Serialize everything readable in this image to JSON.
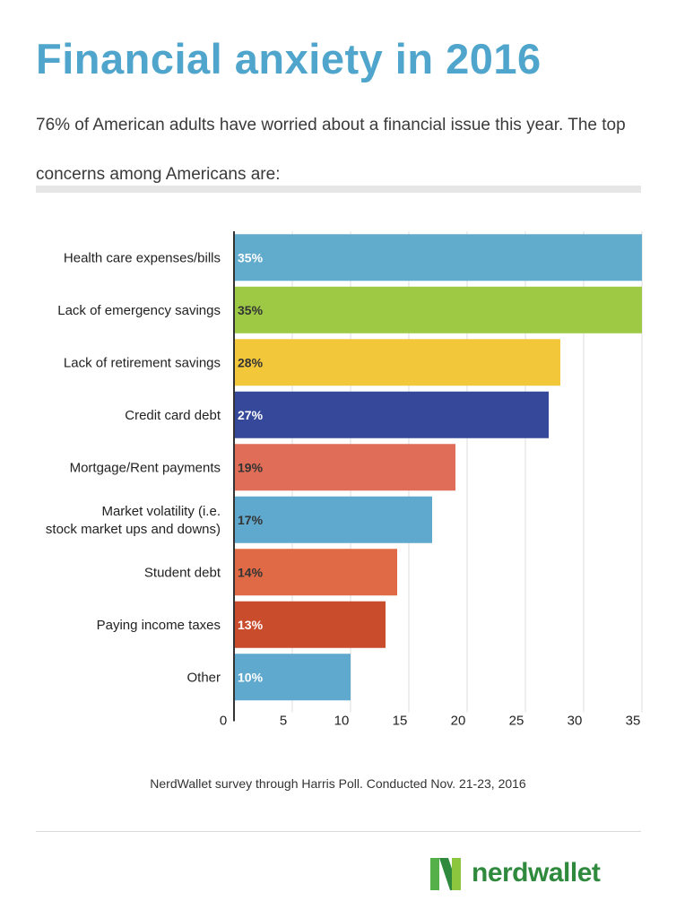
{
  "title": "Financial anxiety in 2016",
  "subtitle": "76% of American adults have worried about a financial issue this year. The top concerns among Americans are:",
  "source": "NerdWallet survey through Harris Poll. Conducted Nov. 21-23, 2016",
  "brand": {
    "name": "nerdwallet",
    "color": "#2f8a3d",
    "icon": "nerdwallet-n-logo-icon"
  },
  "chart_data": {
    "type": "bar",
    "orientation": "horizontal",
    "title": "",
    "xlabel": "",
    "ylabel": "",
    "xlim": [
      0,
      35
    ],
    "xticks": [
      0,
      5,
      10,
      15,
      20,
      25,
      30,
      35
    ],
    "grid": true,
    "legend": "none",
    "categories": [
      "Health care expenses/bills",
      "Lack of emergency savings",
      "Lack of retirement savings",
      "Credit card debt",
      "Mortgage/Rent payments",
      "Market volatility (i.e. stock market ups and downs)",
      "Student debt",
      "Paying income taxes",
      "Other"
    ],
    "values": [
      35,
      35,
      28,
      27,
      19,
      17,
      14,
      13,
      10
    ],
    "value_labels": [
      "35%",
      "35%",
      "28%",
      "27%",
      "19%",
      "17%",
      "14%",
      "13%",
      "10%"
    ],
    "colors": [
      "#61abcd",
      "#9dc945",
      "#f2c83a",
      "#35489a",
      "#e06d57",
      "#5ea9cd",
      "#e06a45",
      "#c94c2d",
      "#5ea9cd"
    ],
    "label_colors": [
      "#ffffff",
      "#333333",
      "#333333",
      "#ffffff",
      "#333333",
      "#333333",
      "#333333",
      "#ffffff",
      "#ffffff"
    ]
  }
}
